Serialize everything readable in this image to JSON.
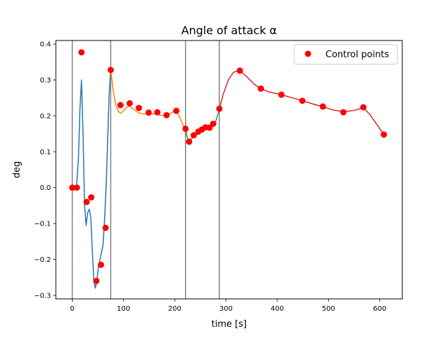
{
  "chart_data": {
    "type": "line",
    "title": "Angle of attack α",
    "xlabel": "time [s]",
    "ylabel": "deg",
    "xlim": [
      -32,
      644
    ],
    "ylim": [
      -0.31,
      0.41
    ],
    "x_ticks": [
      0,
      100,
      200,
      300,
      400,
      500,
      600
    ],
    "y_ticks": [
      -0.3,
      -0.2,
      -0.1,
      0.0,
      0.1,
      0.2,
      0.3,
      0.4
    ],
    "x_tick_labels": [
      "0",
      "100",
      "200",
      "300",
      "400",
      "500",
      "600"
    ],
    "y_tick_labels": [
      "−0.3",
      "−0.2",
      "−0.1",
      "0.0",
      "0.1",
      "0.2",
      "0.3",
      "0.4"
    ],
    "grid": false,
    "legend": {
      "placement": "top-right",
      "entries": [
        "Control points"
      ]
    },
    "phase_boundaries": [
      0,
      75,
      221,
      287
    ],
    "series": [
      {
        "color": "#1f77b4",
        "x": [
          0,
          4,
          8,
          12,
          15,
          18,
          21,
          24,
          27,
          30,
          33,
          36,
          39,
          42,
          45,
          48,
          51,
          54,
          57,
          60,
          63,
          66,
          69,
          72,
          75
        ],
        "y": [
          0.0,
          -0.005,
          -0.005,
          0.08,
          0.22,
          0.3,
          0.15,
          -0.05,
          -0.105,
          -0.07,
          -0.06,
          -0.08,
          -0.17,
          -0.26,
          -0.28,
          -0.26,
          -0.22,
          -0.2,
          -0.18,
          -0.16,
          -0.09,
          0.0,
          0.13,
          0.26,
          0.328
        ]
      },
      {
        "color": "#ff7f0e",
        "x": [
          75,
          80,
          85,
          90,
          95,
          100,
          110,
          120,
          130,
          140,
          150,
          160,
          170,
          180,
          190,
          200,
          205,
          210,
          215,
          221
        ],
        "y": [
          0.328,
          0.27,
          0.23,
          0.212,
          0.207,
          0.215,
          0.228,
          0.218,
          0.208,
          0.205,
          0.207,
          0.205,
          0.202,
          0.2,
          0.205,
          0.213,
          0.208,
          0.195,
          0.178,
          0.163
        ]
      },
      {
        "color": "#2ca02c",
        "x": [
          221,
          224,
          228,
          232,
          237,
          243,
          250,
          257,
          265,
          272,
          278,
          283,
          287
        ],
        "y": [
          0.163,
          0.143,
          0.128,
          0.135,
          0.147,
          0.155,
          0.162,
          0.167,
          0.168,
          0.17,
          0.178,
          0.198,
          0.22
        ]
      },
      {
        "color": "#d62728",
        "x": [
          287,
          295,
          305,
          315,
          327,
          340,
          355,
          368,
          385,
          400,
          410,
          430,
          450,
          470,
          490,
          510,
          530,
          550,
          568,
          580,
          595,
          608
        ],
        "y": [
          0.22,
          0.262,
          0.302,
          0.322,
          0.326,
          0.31,
          0.288,
          0.276,
          0.266,
          0.262,
          0.258,
          0.25,
          0.242,
          0.233,
          0.225,
          0.216,
          0.212,
          0.215,
          0.223,
          0.205,
          0.175,
          0.148
        ]
      }
    ],
    "control_points": {
      "name": "Control points",
      "color": "#ff0000",
      "x": [
        0,
        9,
        18,
        28,
        37,
        47,
        56,
        65,
        75,
        94,
        112,
        130,
        149,
        166,
        184,
        203,
        221,
        228,
        237,
        246,
        253,
        260,
        268,
        275,
        287,
        327,
        368,
        408,
        449,
        489,
        529,
        568,
        608
      ],
      "y": [
        0.0,
        0.0,
        0.377,
        -0.04,
        -0.027,
        -0.26,
        -0.215,
        -0.112,
        0.328,
        0.23,
        0.235,
        0.222,
        0.209,
        0.21,
        0.202,
        0.214,
        0.164,
        0.128,
        0.146,
        0.156,
        0.162,
        0.168,
        0.167,
        0.178,
        0.22,
        0.326,
        0.276,
        0.259,
        0.242,
        0.226,
        0.21,
        0.224,
        0.148
      ]
    }
  }
}
